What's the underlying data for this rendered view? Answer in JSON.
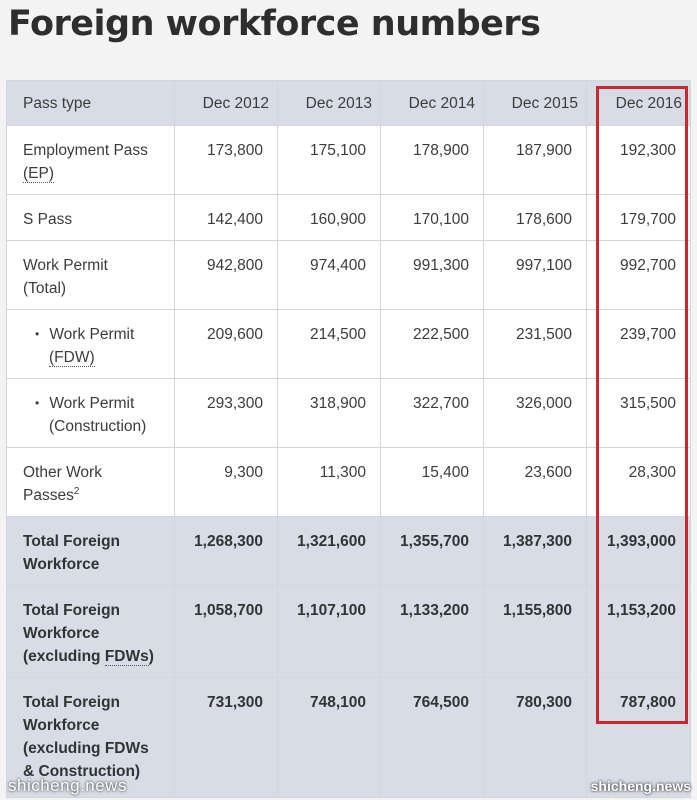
{
  "title": "Foreign workforce numbers",
  "table": {
    "headers": [
      "Pass type",
      "Dec 2012",
      "Dec 2013",
      "Dec 2014",
      "Dec 2015",
      "Dec 2016"
    ],
    "rows": [
      {
        "label": "Employment Pass",
        "label2": "(EP)",
        "values": [
          "173,800",
          "175,100",
          "178,900",
          "187,900",
          "192,300"
        ]
      },
      {
        "label": "S Pass",
        "label2": "",
        "values": [
          "142,400",
          "160,900",
          "170,100",
          "178,600",
          "179,700"
        ]
      },
      {
        "label": "Work Permit",
        "label2": "(Total)",
        "values": [
          "942,800",
          "974,400",
          "991,300",
          "997,100",
          "992,700"
        ]
      },
      {
        "label": "Work Permit",
        "label2": "(FDW)",
        "values": [
          "209,600",
          "214,500",
          "222,500",
          "231,500",
          "239,700"
        ]
      },
      {
        "label": "Work Permit",
        "label2": "(Construction)",
        "values": [
          "293,300",
          "318,900",
          "322,700",
          "326,000",
          "315,500"
        ]
      },
      {
        "label": "Other Work",
        "label2": "Passes",
        "sup": "2",
        "values": [
          "9,300",
          "11,300",
          "15,400",
          "23,600",
          "28,300"
        ]
      },
      {
        "label": "Total Foreign",
        "label2": "Workforce",
        "values": [
          "1,268,300",
          "1,321,600",
          "1,355,700",
          "1,387,300",
          "1,393,000"
        ]
      },
      {
        "label": "Total Foreign",
        "label2": "Workforce",
        "label3": "(excluding ",
        "label3b": "FDWs",
        "label3c": ")",
        "values": [
          "1,058,700",
          "1,107,100",
          "1,133,200",
          "1,155,800",
          "1,153,200"
        ]
      },
      {
        "label": "Total Foreign",
        "label2": "Workforce",
        "label3": "(excluding FDWs",
        "label4": "& Construction)",
        "values": [
          "731,300",
          "748,100",
          "764,500",
          "780,300",
          "787,800"
        ]
      }
    ]
  },
  "bullet_glyph": "•",
  "highlight_color": "#c8282d",
  "watermark_left": "shicheng.news",
  "watermark_right": "shicheng.news"
}
